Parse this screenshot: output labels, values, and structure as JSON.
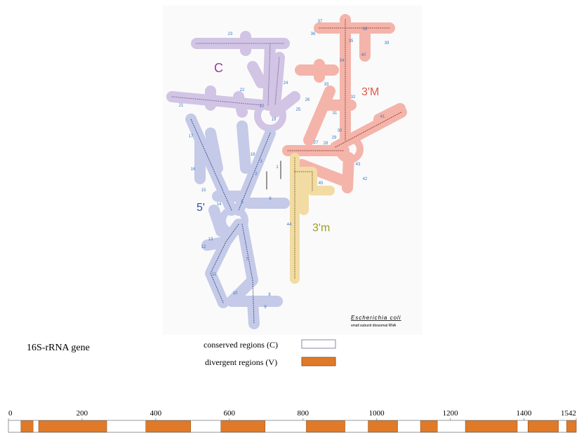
{
  "structure_labels": {
    "c": "C",
    "three_prime_major": "3'M",
    "five_prime": "5'",
    "three_prime_minor": "3'm"
  },
  "helix_numbers": [
    "1",
    "2",
    "3",
    "5",
    "6",
    "7",
    "8",
    "9",
    "10",
    "11",
    "12",
    "13",
    "14",
    "15",
    "16",
    "17",
    "18",
    "19",
    "20",
    "21",
    "22",
    "23",
    "24",
    "25",
    "26",
    "27",
    "28",
    "29",
    "30",
    "31",
    "32",
    "33",
    "34",
    "35",
    "36",
    "37",
    "38",
    "39",
    "40",
    "41",
    "42",
    "43",
    "44",
    "45"
  ],
  "caption": {
    "species": "Escherichia coli",
    "subtitle": "small subunit ribosomal RNA"
  },
  "legend": {
    "title": "16S-rRNA gene",
    "conserved": "conserved regions (C)",
    "divergent": "divergent regions (V)"
  },
  "gene_map": {
    "xlim": [
      0,
      1542
    ],
    "xticks": [
      0,
      200,
      400,
      600,
      800,
      1000,
      1200,
      1400,
      1542
    ],
    "divergent_regions": [
      [
        34,
        67
      ],
      [
        82,
        267
      ],
      [
        373,
        495
      ],
      [
        577,
        697
      ],
      [
        809,
        914
      ],
      [
        977,
        1057
      ],
      [
        1119,
        1165
      ],
      [
        1241,
        1382
      ],
      [
        1411,
        1494
      ],
      [
        1516,
        1542
      ]
    ],
    "divergent_color": "#e07a28",
    "conserved_color": "#ffffff"
  }
}
